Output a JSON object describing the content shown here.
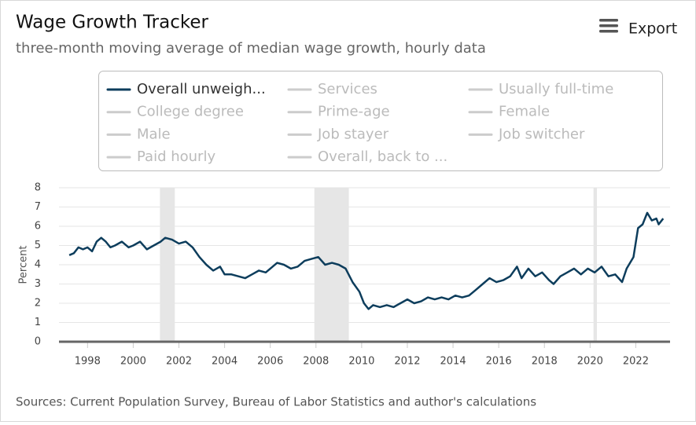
{
  "chart_data": {
    "type": "line",
    "title": "Wage Growth Tracker",
    "subtitle": "three-month moving average of median wage growth, hourly data",
    "export_label": "Export",
    "y_label": "Percent",
    "source": "Sources: Current Population Survey, Bureau of Labor Statistics and author's calculations",
    "x": [
      1997.2,
      1997.4,
      1997.6,
      1997.8,
      1998.0,
      1998.2,
      1998.4,
      1998.6,
      1998.8,
      1999.0,
      1999.2,
      1999.5,
      1999.8,
      2000.0,
      2000.3,
      2000.6,
      2000.9,
      2001.2,
      2001.4,
      2001.7,
      2002.0,
      2002.3,
      2002.6,
      2002.9,
      2003.2,
      2003.5,
      2003.8,
      2004.0,
      2004.3,
      2004.6,
      2004.9,
      2005.2,
      2005.5,
      2005.8,
      2006.0,
      2006.3,
      2006.6,
      2006.9,
      2007.2,
      2007.5,
      2007.8,
      2008.1,
      2008.4,
      2008.7,
      2009.0,
      2009.3,
      2009.6,
      2009.9,
      2010.1,
      2010.3,
      2010.5,
      2010.8,
      2011.1,
      2011.4,
      2011.7,
      2012.0,
      2012.3,
      2012.6,
      2012.9,
      2013.2,
      2013.5,
      2013.8,
      2014.1,
      2014.4,
      2014.7,
      2015.0,
      2015.3,
      2015.6,
      2015.9,
      2016.2,
      2016.5,
      2016.8,
      2017.0,
      2017.3,
      2017.6,
      2017.9,
      2018.2,
      2018.4,
      2018.7,
      2019.0,
      2019.3,
      2019.6,
      2019.9,
      2020.2,
      2020.5,
      2020.8,
      2021.1,
      2021.4,
      2021.6,
      2021.9,
      2022.1,
      2022.3,
      2022.5,
      2022.7,
      2022.9,
      2023.0,
      2023.2
    ],
    "series": [
      {
        "name": "Overall unweigh...",
        "color": "#0d3d5c",
        "values": [
          4.5,
          4.6,
          4.9,
          4.8,
          4.9,
          4.7,
          5.2,
          5.4,
          5.2,
          4.9,
          5.0,
          5.2,
          4.9,
          5.0,
          5.2,
          4.8,
          5.0,
          5.2,
          5.4,
          5.3,
          5.1,
          5.2,
          4.9,
          4.4,
          4.0,
          3.7,
          3.9,
          3.5,
          3.5,
          3.4,
          3.3,
          3.5,
          3.7,
          3.6,
          3.8,
          4.1,
          4.0,
          3.8,
          3.9,
          4.2,
          4.3,
          4.4,
          4.0,
          4.1,
          4.0,
          3.8,
          3.1,
          2.6,
          2.0,
          1.7,
          1.9,
          1.8,
          1.9,
          1.8,
          2.0,
          2.2,
          2.0,
          2.1,
          2.3,
          2.2,
          2.3,
          2.2,
          2.4,
          2.3,
          2.4,
          2.7,
          3.0,
          3.3,
          3.1,
          3.2,
          3.4,
          3.9,
          3.3,
          3.8,
          3.4,
          3.6,
          3.2,
          3.0,
          3.4,
          3.6,
          3.8,
          3.5,
          3.8,
          3.6,
          3.9,
          3.4,
          3.5,
          3.1,
          3.8,
          4.4,
          5.9,
          6.1,
          6.7,
          6.3,
          6.4,
          6.1,
          6.4
        ]
      }
    ],
    "hidden_series": [
      "Services",
      "Usually full-time",
      "College degree",
      "Prime-age",
      "Female",
      "Male",
      "Job stayer",
      "Job switcher",
      "Paid hourly",
      "Overall, back to ..."
    ],
    "bands": [
      [
        2001.17,
        2001.82
      ],
      [
        2007.93,
        2009.44
      ],
      [
        2020.15,
        2020.3
      ]
    ],
    "xlim": [
      1996.75,
      2023.5
    ],
    "xticks": [
      1998,
      2000,
      2002,
      2004,
      2006,
      2008,
      2010,
      2012,
      2014,
      2016,
      2018,
      2020,
      2022
    ],
    "ylim": [
      0,
      8
    ],
    "yticks": [
      0,
      1,
      2,
      3,
      4,
      5,
      6,
      7,
      8
    ],
    "grid": true
  }
}
